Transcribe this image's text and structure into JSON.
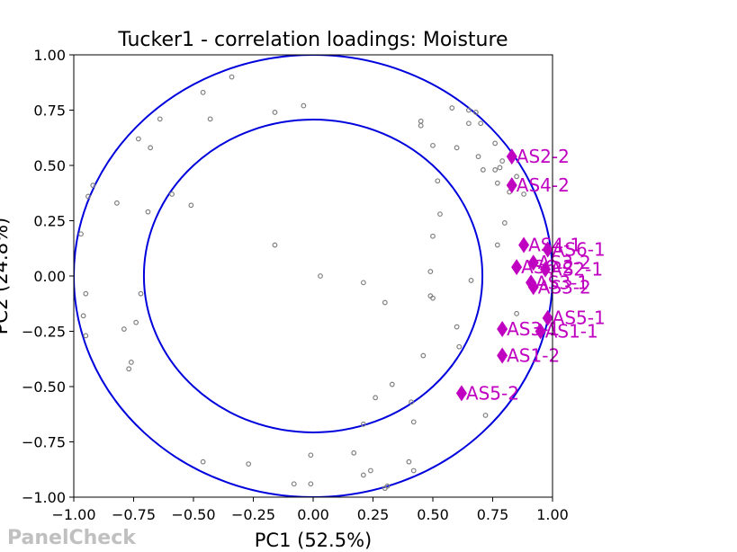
{
  "chart_data": {
    "type": "scatter",
    "title": "Tucker1 - correlation loadings: Moisture",
    "xlabel": "PC1 (52.5%)",
    "ylabel": "PC2 (24.8%)",
    "xlim": [
      -1.0,
      1.0
    ],
    "ylim": [
      -1.0,
      1.0
    ],
    "x_ticks": [
      "−1.00",
      "−0.75",
      "−0.50",
      "−0.25",
      "0.00",
      "0.25",
      "0.50",
      "0.75",
      "1.00"
    ],
    "y_ticks": [
      "−1.00",
      "−0.75",
      "−0.50",
      "−0.25",
      "0.00",
      "0.25",
      "0.50",
      "0.75",
      "1.00"
    ],
    "x_tick_values": [
      -1.0,
      -0.75,
      -0.5,
      -0.25,
      0.0,
      0.25,
      0.5,
      0.75,
      1.0
    ],
    "y_tick_values": [
      -1.0,
      -0.75,
      -0.5,
      -0.25,
      0.0,
      0.25,
      0.5,
      0.75,
      1.0
    ],
    "circles": [
      1.0,
      0.7071
    ],
    "circle_color": "#0000dd",
    "grid": false,
    "variables_color": "#808080",
    "assessors_color": "#c000c0",
    "variables": [
      [
        -0.46,
        0.83
      ],
      [
        -0.34,
        0.9
      ],
      [
        -0.16,
        0.74
      ],
      [
        -0.04,
        0.77
      ],
      [
        -0.64,
        0.71
      ],
      [
        -0.43,
        0.71
      ],
      [
        -0.73,
        0.62
      ],
      [
        -0.68,
        0.58
      ],
      [
        -0.92,
        0.41
      ],
      [
        -0.94,
        0.36
      ],
      [
        -0.82,
        0.33
      ],
      [
        -0.59,
        0.37
      ],
      [
        -0.69,
        0.29
      ],
      [
        -0.51,
        0.32
      ],
      [
        -0.97,
        0.19
      ],
      [
        -0.16,
        0.14
      ],
      [
        0.03,
        0.0
      ],
      [
        -0.95,
        -0.08
      ],
      [
        -0.72,
        -0.08
      ],
      [
        -0.96,
        -0.18
      ],
      [
        -0.74,
        -0.21
      ],
      [
        -0.79,
        -0.24
      ],
      [
        -0.95,
        -0.27
      ],
      [
        -0.76,
        -0.39
      ],
      [
        -0.77,
        -0.42
      ],
      [
        0.45,
        0.7
      ],
      [
        0.45,
        0.68
      ],
      [
        0.58,
        0.76
      ],
      [
        0.65,
        0.75
      ],
      [
        0.68,
        0.74
      ],
      [
        0.65,
        0.69
      ],
      [
        0.7,
        0.69
      ],
      [
        0.5,
        0.59
      ],
      [
        0.6,
        0.58
      ],
      [
        0.76,
        0.6
      ],
      [
        0.69,
        0.54
      ],
      [
        0.79,
        0.52
      ],
      [
        0.71,
        0.48
      ],
      [
        0.76,
        0.48
      ],
      [
        0.78,
        0.49
      ],
      [
        0.85,
        0.45
      ],
      [
        0.77,
        0.42
      ],
      [
        0.82,
        0.38
      ],
      [
        0.88,
        0.37
      ],
      [
        0.52,
        0.43
      ],
      [
        0.53,
        0.28
      ],
      [
        0.8,
        0.24
      ],
      [
        0.5,
        0.18
      ],
      [
        0.77,
        0.14
      ],
      [
        0.49,
        0.02
      ],
      [
        0.66,
        -0.02
      ],
      [
        0.21,
        -0.03
      ],
      [
        0.49,
        -0.09
      ],
      [
        0.5,
        -0.1
      ],
      [
        0.3,
        -0.12
      ],
      [
        0.85,
        -0.17
      ],
      [
        0.6,
        -0.23
      ],
      [
        0.61,
        -0.32
      ],
      [
        0.46,
        -0.36
      ],
      [
        0.33,
        -0.49
      ],
      [
        0.26,
        -0.55
      ],
      [
        0.41,
        -0.57
      ],
      [
        0.72,
        -0.63
      ],
      [
        0.42,
        -0.66
      ],
      [
        0.21,
        -0.67
      ],
      [
        -0.46,
        -0.84
      ],
      [
        -0.27,
        -0.85
      ],
      [
        0.17,
        -0.8
      ],
      [
        0.4,
        -0.84
      ],
      [
        -0.01,
        -0.81
      ],
      [
        0.24,
        -0.88
      ],
      [
        0.21,
        -0.9
      ],
      [
        0.42,
        -0.88
      ],
      [
        0.31,
        -0.95
      ],
      [
        0.3,
        -0.96
      ],
      [
        -0.08,
        -0.94
      ],
      [
        -0.01,
        -0.94
      ]
    ],
    "assessors": [
      {
        "label": "AS2-2",
        "x": 0.83,
        "y": 0.54
      },
      {
        "label": "AS4-2",
        "x": 0.83,
        "y": 0.41
      },
      {
        "label": "AS4-1",
        "x": 0.88,
        "y": 0.14
      },
      {
        "label": "AS6-1",
        "x": 0.98,
        "y": 0.12
      },
      {
        "label": "AS3-2",
        "x": 0.92,
        "y": 0.06
      },
      {
        "label": "AS6-2",
        "x": 0.85,
        "y": 0.04
      },
      {
        "label": "AS2-1",
        "x": 0.97,
        "y": 0.03
      },
      {
        "label": "AS3-1",
        "x": 0.91,
        "y": -0.03
      },
      {
        "label": "AS3-2",
        "x": 0.92,
        "y": -0.05
      },
      {
        "label": "AS5-1",
        "x": 0.98,
        "y": -0.19
      },
      {
        "label": "AS3-1",
        "x": 0.79,
        "y": -0.24
      },
      {
        "label": "AS1-1",
        "x": 0.95,
        "y": -0.25
      },
      {
        "label": "AS1-2",
        "x": 0.79,
        "y": -0.36
      },
      {
        "label": "AS5-2",
        "x": 0.62,
        "y": -0.53
      }
    ]
  },
  "watermark": "PanelCheck"
}
